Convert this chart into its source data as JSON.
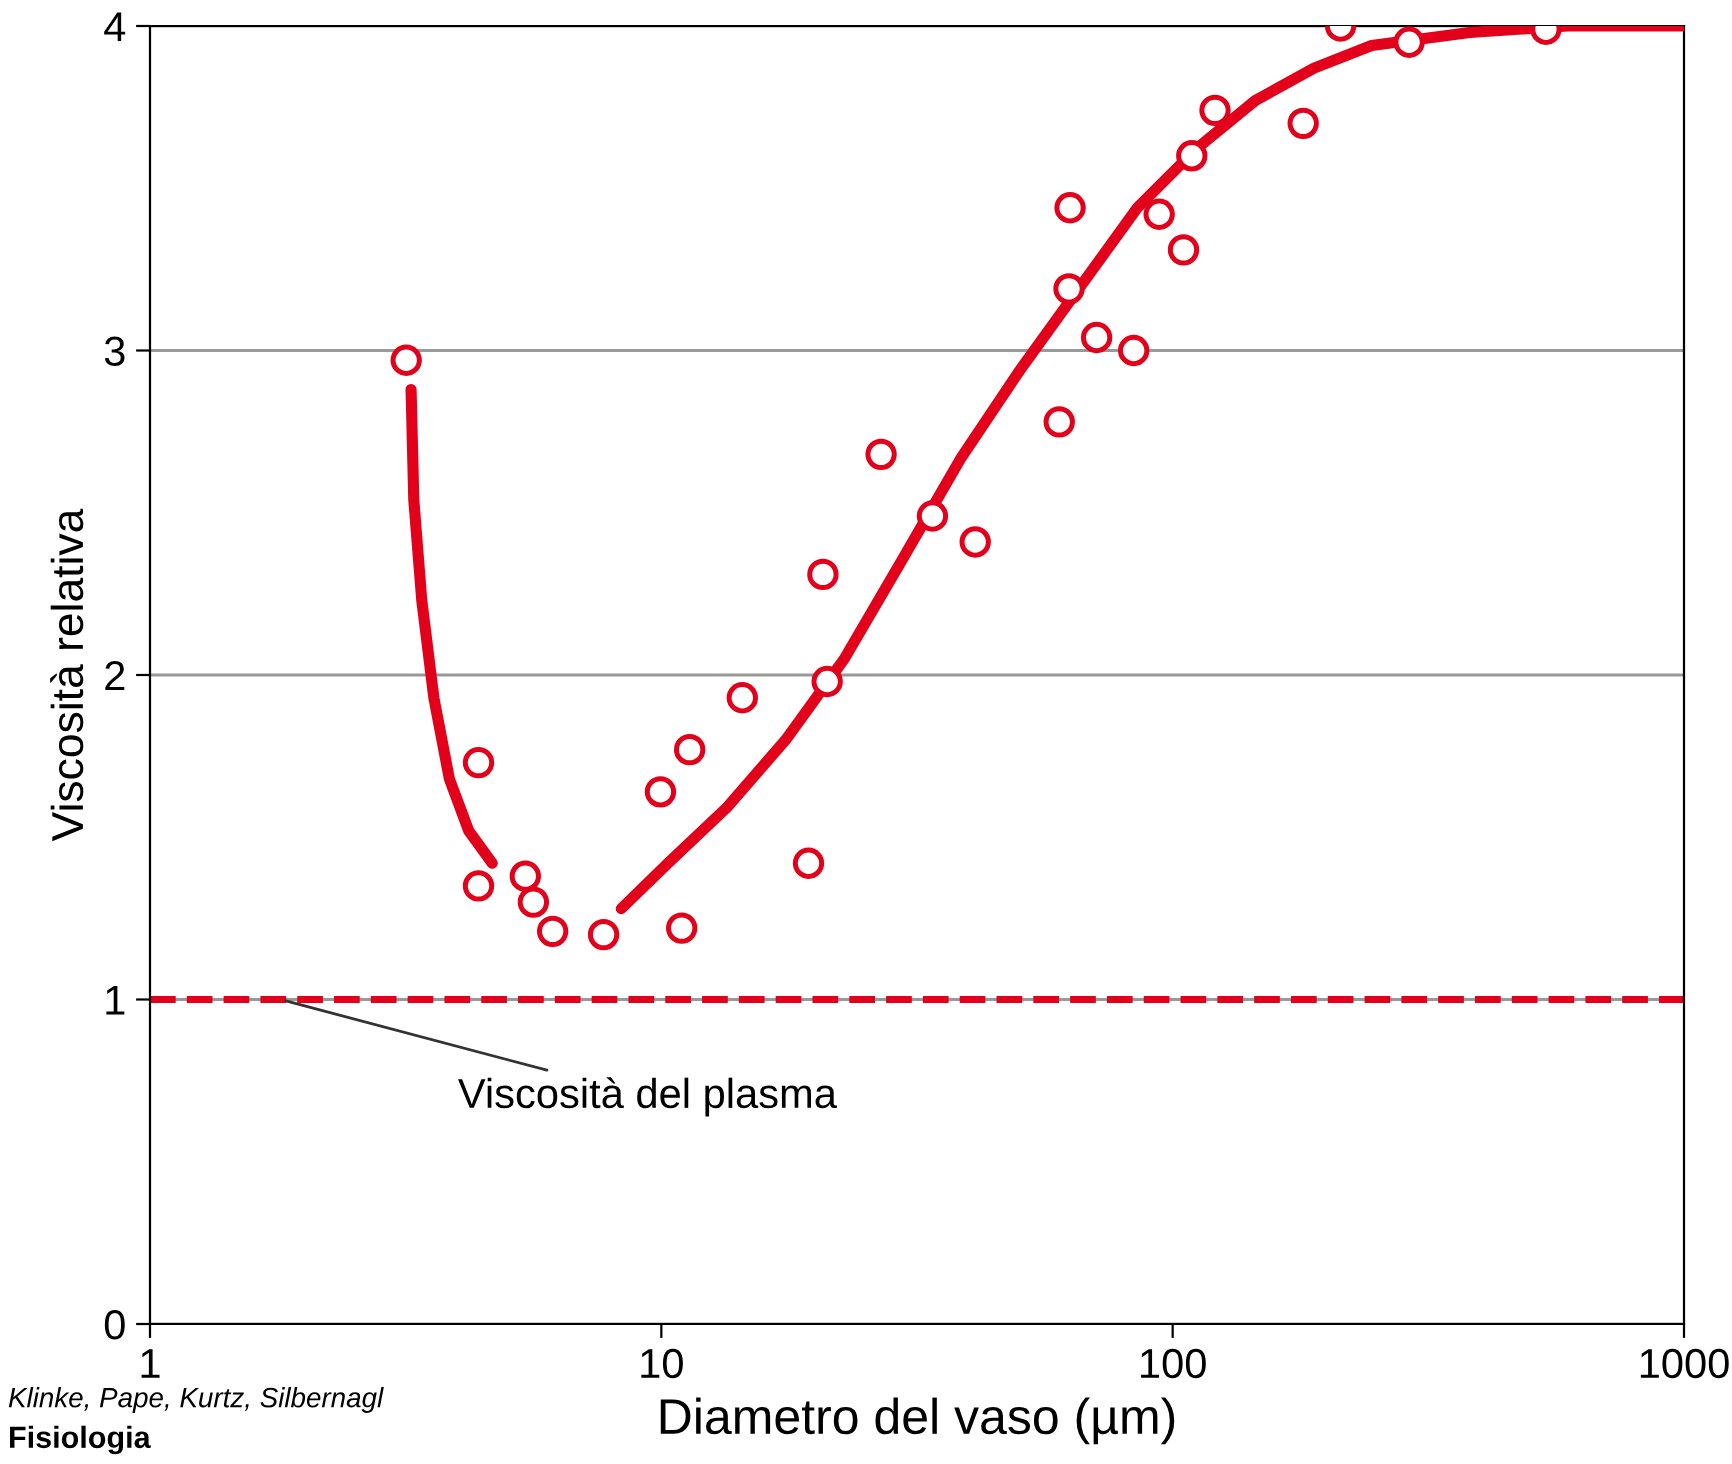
{
  "chart_data": {
    "type": "scatter",
    "xlabel": "Diametro del vaso (µm)",
    "ylabel": "Viscosità relativa",
    "log": "x",
    "xlim": [
      1,
      1000
    ],
    "xticks": [
      1,
      10,
      100,
      1000
    ],
    "ylim": [
      0,
      4
    ],
    "yticks": [
      0,
      1,
      2,
      3,
      4
    ],
    "grid": "y",
    "series": [
      {
        "marker": "circle",
        "color": "#e2001a",
        "x": [
          3.17,
          4.39,
          4.39,
          5.42,
          5.62,
          6.13,
          7.71,
          10.96,
          9.96,
          11.36,
          14.4,
          19.4,
          20.7,
          21.1,
          26.9,
          33.9,
          41.1,
          60.0,
          62.7,
          63.0,
          71.0,
          83.9,
          94.1,
          105,
          109,
          121,
          180,
          213,
          290,
          537
        ],
        "values": [
          2.97,
          1.73,
          1.35,
          1.38,
          1.3,
          1.21,
          1.2,
          1.22,
          1.64,
          1.77,
          1.93,
          1.42,
          2.31,
          1.98,
          2.68,
          2.49,
          2.41,
          2.78,
          3.19,
          3.44,
          3.04,
          3.0,
          3.42,
          3.31,
          3.6,
          3.74,
          3.7,
          4.0,
          3.95,
          3.99
        ]
      },
      {
        "type": "line",
        "color": "#e2001a",
        "line_style": "solid",
        "x": [
          3.24,
          3.28,
          3.4,
          3.59,
          3.85,
          4.2,
          4.67
        ],
        "values": [
          2.88,
          2.54,
          2.23,
          1.93,
          1.68,
          1.52,
          1.42
        ]
      },
      {
        "type": "line",
        "color": "#e2001a",
        "line_style": "solid",
        "x": [
          8.35,
          10.3,
          13.4,
          17.5,
          22.8,
          29.7,
          38.6,
          50.3,
          65.5,
          85.3,
          111,
          145,
          189,
          245,
          381,
          592,
          1000
        ],
        "values": [
          1.28,
          1.42,
          1.59,
          1.8,
          2.05,
          2.36,
          2.67,
          2.94,
          3.19,
          3.44,
          3.62,
          3.77,
          3.87,
          3.94,
          3.98,
          4.0,
          4.0
        ]
      }
    ],
    "ref_lines": [
      {
        "axis": "y",
        "value": 1,
        "label": "Viscosità del plasma",
        "color": "#e2001a",
        "line_style": "dashed"
      }
    ],
    "annotations": [
      "Klinke, Pape, Kurtz, Silbernagl",
      "Fisiologia"
    ]
  }
}
